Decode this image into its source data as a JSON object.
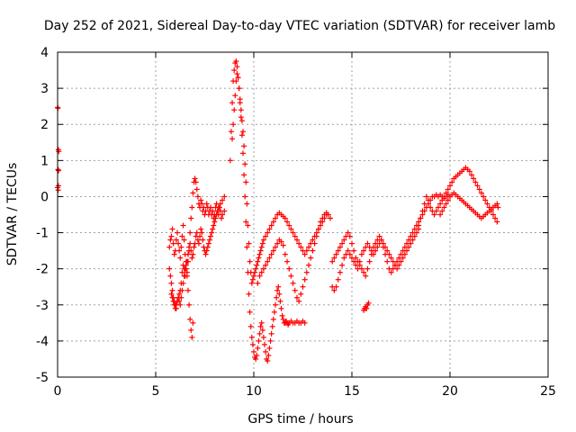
{
  "chart_data": {
    "type": "scatter",
    "title": "Day 252 of 2021, Sidereal Day-to-day VTEC variation (SDTVAR) for receiver lamb",
    "xlabel": "GPS time / hours",
    "ylabel": "SDTVAR / TECUs",
    "xlim": [
      0,
      25
    ],
    "ylim": [
      -5,
      4
    ],
    "xticks": [
      "0",
      "5",
      "10",
      "15",
      "20",
      "25"
    ],
    "yticks": [
      "-5",
      "-4",
      "-3",
      "-2",
      "-1",
      "0",
      "1",
      "2",
      "3",
      "4"
    ],
    "grid": true,
    "marker": "plus",
    "color": "#ff0000",
    "series": [
      {
        "x": [
          0.0,
          0.02,
          0.04,
          0.06,
          0.02,
          0.04,
          0.0,
          0.03,
          0.05
        ],
        "y": [
          2.47,
          2.45,
          1.3,
          1.25,
          0.75,
          0.3,
          0.25,
          0.18,
          0.72
        ]
      },
      {
        "x": [
          5.7,
          5.75,
          5.8,
          5.85,
          5.9,
          5.95,
          6.0,
          6.05,
          6.1,
          6.15,
          6.2,
          6.25,
          6.3,
          6.35,
          6.4,
          6.45,
          6.5,
          6.55,
          6.6,
          6.65,
          6.7,
          6.75,
          6.8,
          6.85,
          6.9,
          6.95,
          7.0,
          7.05,
          7.1,
          7.15,
          7.2,
          7.25,
          7.3,
          7.35,
          7.4,
          7.45,
          7.5,
          7.55,
          7.6,
          7.65,
          7.7,
          7.75,
          7.8,
          7.85,
          7.9,
          7.95,
          8.0,
          8.05,
          8.1,
          8.15,
          8.2,
          8.25,
          8.3,
          8.35,
          8.4,
          8.5
        ],
        "y": [
          -1.4,
          -1.2,
          -1.1,
          -0.9,
          -1.3,
          -1.6,
          -1.5,
          -1.2,
          -1.0,
          -1.3,
          -1.5,
          -1.7,
          -1.4,
          -1.1,
          -0.8,
          -1.2,
          -1.6,
          -1.9,
          -2.1,
          -1.8,
          -1.4,
          -1.0,
          -0.6,
          -0.3,
          0.1,
          0.4,
          0.5,
          0.4,
          0.2,
          0.0,
          -0.2,
          -0.3,
          -0.1,
          -0.2,
          -0.4,
          -0.3,
          -0.5,
          -0.4,
          -0.2,
          -0.3,
          -0.5,
          -0.4,
          -0.3,
          -0.5,
          -0.4,
          -0.6,
          -0.5,
          -0.3,
          -0.2,
          -0.4,
          -0.5,
          -0.3,
          -0.4,
          -0.6,
          -0.5,
          -0.4
        ]
      },
      {
        "x": [
          5.7,
          5.75,
          5.8,
          5.85,
          5.9,
          5.95,
          6.0,
          6.05,
          6.1,
          6.15,
          6.2,
          6.25,
          6.3,
          6.35,
          6.4,
          6.45,
          6.5,
          6.55,
          6.6,
          6.65,
          6.7,
          6.75,
          6.8,
          6.85,
          6.9,
          6.95,
          7.0,
          7.05,
          7.1,
          7.15,
          7.2,
          7.25,
          7.3,
          7.35,
          7.4,
          7.45,
          7.5,
          7.55,
          7.6,
          7.65,
          7.7,
          7.75,
          7.8,
          7.85,
          7.9,
          7.95,
          8.0,
          8.05,
          8.1,
          8.15,
          8.2,
          8.3,
          8.4,
          8.5
        ],
        "y": [
          -2.0,
          -2.2,
          -2.4,
          -2.6,
          -2.8,
          -2.9,
          -3.0,
          -3.1,
          -2.9,
          -2.8,
          -2.7,
          -2.6,
          -2.4,
          -2.1,
          -1.9,
          -2.0,
          -2.2,
          -2.0,
          -1.8,
          -1.6,
          -1.5,
          -1.3,
          -1.5,
          -1.7,
          -1.6,
          -1.4,
          -1.3,
          -1.1,
          -1.0,
          -1.2,
          -1.3,
          -1.1,
          -0.9,
          -1.0,
          -1.2,
          -1.4,
          -1.5,
          -1.6,
          -1.5,
          -1.4,
          -1.3,
          -1.2,
          -1.1,
          -1.0,
          -0.9,
          -0.8,
          -0.7,
          -0.6,
          -0.5,
          -0.4,
          -0.3,
          -0.2,
          -0.1,
          0.0
        ]
      },
      {
        "x": [
          5.8,
          5.85,
          5.9,
          5.95,
          6.0,
          6.05,
          6.1,
          6.15,
          6.2,
          6.25,
          6.3,
          6.35,
          6.4,
          6.45,
          6.5,
          6.55,
          6.6,
          6.65,
          6.7,
          6.75,
          6.8,
          6.85,
          6.9
        ],
        "y": [
          -2.7,
          -2.8,
          -2.9,
          -3.0,
          -3.1,
          -3.0,
          -2.9,
          -2.8,
          -2.9,
          -3.0,
          -2.8,
          -2.6,
          -2.4,
          -2.2,
          -2.0,
          -1.8,
          -2.2,
          -2.6,
          -3.0,
          -3.4,
          -3.7,
          -3.9,
          -3.5
        ]
      },
      {
        "x": [
          8.8,
          8.85,
          8.9,
          8.95,
          9.0,
          9.05,
          9.1,
          9.15,
          9.2,
          9.25,
          9.3,
          9.35,
          9.4,
          9.45,
          9.5,
          9.55,
          9.6,
          9.65,
          9.7,
          9.75,
          9.8,
          9.85,
          9.9,
          9.95,
          10.0,
          10.05,
          10.1,
          10.15,
          10.2,
          10.25,
          10.3,
          10.35,
          10.4,
          10.45,
          10.5,
          10.55,
          10.6,
          10.65,
          10.7,
          10.75,
          10.8,
          10.85,
          10.9,
          10.95,
          11.0,
          11.05,
          11.1,
          11.15,
          11.2,
          11.25,
          11.3,
          11.35,
          11.4,
          11.45,
          11.5,
          11.55,
          11.6,
          11.65,
          11.7,
          11.75,
          11.8,
          11.9,
          12.0,
          12.1,
          12.2,
          12.3,
          12.4,
          12.5,
          12.6
        ],
        "y": [
          1.0,
          1.8,
          2.6,
          3.2,
          3.5,
          3.7,
          3.75,
          3.6,
          3.3,
          3.0,
          2.6,
          2.2,
          1.7,
          1.2,
          0.6,
          0.0,
          -0.7,
          -1.4,
          -2.1,
          -2.7,
          -3.2,
          -3.6,
          -3.9,
          -4.1,
          -4.3,
          -4.45,
          -4.5,
          -4.4,
          -4.2,
          -4.0,
          -3.8,
          -3.6,
          -3.5,
          -3.7,
          -3.9,
          -4.1,
          -4.3,
          -4.5,
          -4.55,
          -4.4,
          -4.2,
          -4.0,
          -3.8,
          -3.6,
          -3.4,
          -3.2,
          -3.0,
          -2.8,
          -2.6,
          -2.5,
          -2.7,
          -2.9,
          -3.1,
          -3.3,
          -3.4,
          -3.5,
          -3.5,
          -3.45,
          -3.5,
          -3.55,
          -3.5,
          -3.45,
          -3.5,
          -3.5,
          -3.45,
          -3.5,
          -3.5,
          -3.45,
          -3.5
        ]
      },
      {
        "x": [
          8.9,
          8.95,
          9.0,
          9.05,
          9.1,
          9.15,
          9.2,
          9.25,
          9.3,
          9.35,
          9.4,
          9.45,
          9.5,
          9.55,
          9.6,
          9.65,
          9.7,
          9.75,
          9.8,
          9.85,
          9.9,
          9.95,
          10.0,
          10.05,
          10.1,
          10.15,
          10.2,
          10.25,
          10.3,
          10.35,
          10.4,
          10.45,
          10.5,
          10.6,
          10.7,
          10.8,
          10.9,
          11.0,
          11.1,
          11.2,
          11.3,
          11.4,
          11.5,
          11.6,
          11.7,
          11.8,
          11.9,
          12.0,
          12.1,
          12.2,
          12.3,
          12.4,
          12.5,
          12.6,
          12.7,
          12.8,
          12.9,
          13.0,
          13.1,
          13.2,
          13.3,
          13.4,
          13.5,
          13.6,
          13.7
        ],
        "y": [
          1.6,
          2.0,
          2.4,
          2.8,
          3.2,
          3.4,
          3.3,
          3.0,
          2.7,
          2.4,
          2.1,
          1.8,
          1.4,
          0.9,
          0.4,
          -0.2,
          -0.8,
          -1.3,
          -1.8,
          -2.1,
          -2.4,
          -2.3,
          -2.2,
          -2.1,
          -2.0,
          -1.9,
          -1.8,
          -1.7,
          -1.6,
          -1.5,
          -1.4,
          -1.3,
          -1.2,
          -1.1,
          -1.0,
          -0.9,
          -0.8,
          -0.7,
          -0.6,
          -0.5,
          -0.45,
          -0.5,
          -0.55,
          -0.6,
          -0.7,
          -0.8,
          -0.9,
          -1.0,
          -1.1,
          -1.2,
          -1.3,
          -1.4,
          -1.5,
          -1.6,
          -1.5,
          -1.4,
          -1.3,
          -1.2,
          -1.1,
          -1.0,
          -0.9,
          -0.8,
          -0.7,
          -0.6,
          -0.5
        ]
      },
      {
        "x": [
          10.2,
          10.3,
          10.4,
          10.5,
          10.6,
          10.7,
          10.8,
          10.9,
          11.0,
          11.1,
          11.2,
          11.3,
          11.4,
          11.5,
          11.6,
          11.7,
          11.8,
          11.9,
          12.0,
          12.1,
          12.2,
          12.3,
          12.4,
          12.5,
          12.6,
          12.7,
          12.8,
          12.9,
          13.0,
          13.1,
          13.2,
          13.3,
          13.4,
          13.5,
          13.6,
          13.7,
          13.8,
          13.9
        ],
        "y": [
          -2.4,
          -2.2,
          -2.1,
          -2.0,
          -1.9,
          -1.8,
          -1.7,
          -1.6,
          -1.5,
          -1.4,
          -1.3,
          -1.2,
          -1.25,
          -1.35,
          -1.6,
          -1.8,
          -2.0,
          -2.2,
          -2.4,
          -2.6,
          -2.8,
          -2.9,
          -2.7,
          -2.5,
          -2.3,
          -2.1,
          -1.9,
          -1.7,
          -1.5,
          -1.3,
          -1.1,
          -0.9,
          -0.7,
          -0.6,
          -0.5,
          -0.45,
          -0.5,
          -0.6
        ]
      },
      {
        "x": [
          14.0,
          14.1,
          14.2,
          14.3,
          14.4,
          14.5,
          14.6,
          14.7,
          14.8,
          14.9,
          15.0,
          15.1,
          15.2,
          15.3,
          15.4,
          15.5,
          15.6,
          15.7,
          15.8,
          15.9,
          16.0,
          16.1,
          16.2,
          16.3,
          16.4,
          16.5,
          16.6,
          16.7,
          16.8,
          16.9,
          17.0,
          17.1,
          17.2,
          17.3,
          17.4,
          17.5,
          17.6,
          17.7,
          17.8,
          17.9,
          18.0,
          18.1,
          18.2,
          18.3,
          18.4,
          18.5,
          18.6,
          18.7,
          18.8,
          18.9,
          19.0,
          19.1,
          19.2,
          19.3,
          19.4,
          19.5,
          19.6,
          19.7,
          19.8,
          19.9,
          20.0
        ],
        "y": [
          -2.5,
          -2.6,
          -2.5,
          -2.3,
          -2.1,
          -1.9,
          -1.7,
          -1.6,
          -1.5,
          -1.6,
          -1.7,
          -1.8,
          -1.9,
          -2.0,
          -1.8,
          -1.6,
          -1.5,
          -1.4,
          -1.3,
          -1.4,
          -1.5,
          -1.6,
          -1.5,
          -1.4,
          -1.3,
          -1.2,
          -1.4,
          -1.6,
          -1.8,
          -2.0,
          -2.1,
          -2.0,
          -1.9,
          -1.8,
          -1.7,
          -1.6,
          -1.5,
          -1.4,
          -1.3,
          -1.2,
          -1.1,
          -1.0,
          -0.9,
          -0.8,
          -0.7,
          -0.6,
          -0.5,
          -0.4,
          -0.3,
          -0.2,
          -0.1,
          0.0,
          0.0,
          0.05,
          0.0,
          0.05,
          0.0,
          -0.05,
          0.0,
          0.05,
          0.0
        ]
      },
      {
        "x": [
          14.0,
          14.1,
          14.2,
          14.3,
          14.4,
          14.5,
          14.6,
          14.7,
          14.8,
          14.9,
          15.0,
          15.1,
          15.2,
          15.3,
          15.4,
          15.5,
          15.6,
          15.7,
          15.8,
          15.9,
          16.0,
          16.1,
          16.2,
          16.3,
          16.4,
          16.5,
          16.6,
          16.7,
          16.8,
          16.9,
          17.0,
          17.1,
          17.2,
          17.3,
          17.4,
          17.5,
          17.6,
          17.7,
          17.8,
          17.9,
          18.0,
          18.1,
          18.2,
          18.3,
          18.4
        ],
        "y": [
          -1.8,
          -1.7,
          -1.6,
          -1.5,
          -1.4,
          -1.3,
          -1.2,
          -1.1,
          -1.0,
          -1.1,
          -1.3,
          -1.5,
          -1.7,
          -1.8,
          -1.9,
          -2.0,
          -2.1,
          -2.2,
          -2.0,
          -1.8,
          -1.6,
          -1.4,
          -1.3,
          -1.2,
          -1.1,
          -1.2,
          -1.3,
          -1.4,
          -1.5,
          -1.6,
          -1.7,
          -1.8,
          -1.9,
          -2.0,
          -1.9,
          -1.8,
          -1.7,
          -1.6,
          -1.5,
          -1.4,
          -1.3,
          -1.2,
          -1.1,
          -1.0,
          -0.9
        ]
      },
      {
        "x": [
          15.6,
          15.65,
          15.7,
          15.75,
          15.8,
          15.85
        ],
        "y": [
          -3.15,
          -3.1,
          -3.05,
          -3.1,
          -3.0,
          -2.95
        ]
      },
      {
        "x": [
          18.4,
          18.5,
          18.6,
          18.7,
          18.8,
          18.9,
          19.0,
          19.1,
          19.2,
          19.3,
          19.4,
          19.5,
          19.6,
          19.7,
          19.8,
          19.9,
          20.0,
          20.1,
          20.2,
          20.3,
          20.4,
          20.5,
          20.6,
          20.7,
          20.8,
          20.9,
          21.0,
          21.1,
          21.2,
          21.3,
          21.4,
          21.5,
          21.6,
          21.7,
          21.8,
          21.9,
          22.0,
          22.1,
          22.2,
          22.3,
          22.4
        ],
        "y": [
          -0.8,
          -0.6,
          -0.4,
          -0.2,
          0.0,
          -0.1,
          -0.3,
          -0.4,
          -0.5,
          -0.4,
          -0.3,
          -0.2,
          -0.1,
          0.0,
          0.1,
          0.2,
          0.3,
          0.4,
          0.5,
          0.55,
          0.6,
          0.65,
          0.7,
          0.75,
          0.8,
          0.75,
          0.7,
          0.6,
          0.5,
          0.4,
          0.3,
          0.2,
          0.1,
          0.0,
          -0.1,
          -0.2,
          -0.3,
          -0.4,
          -0.5,
          -0.6,
          -0.7
        ]
      },
      {
        "x": [
          19.5,
          19.6,
          19.7,
          19.8,
          19.9,
          20.0,
          20.1,
          20.2,
          20.3,
          20.4,
          20.5,
          20.6,
          20.7,
          20.8,
          20.9,
          21.0,
          21.1,
          21.2,
          21.3,
          21.4,
          21.5,
          21.6,
          21.7,
          21.8,
          21.9,
          22.0,
          22.1,
          22.2,
          22.3,
          22.4,
          22.45
        ],
        "y": [
          -0.5,
          -0.4,
          -0.3,
          -0.2,
          -0.1,
          0.0,
          0.05,
          0.1,
          0.05,
          0.0,
          -0.05,
          -0.1,
          -0.15,
          -0.2,
          -0.25,
          -0.3,
          -0.35,
          -0.4,
          -0.45,
          -0.5,
          -0.55,
          -0.6,
          -0.55,
          -0.5,
          -0.45,
          -0.4,
          -0.35,
          -0.3,
          -0.25,
          -0.2,
          -0.3
        ]
      }
    ]
  }
}
